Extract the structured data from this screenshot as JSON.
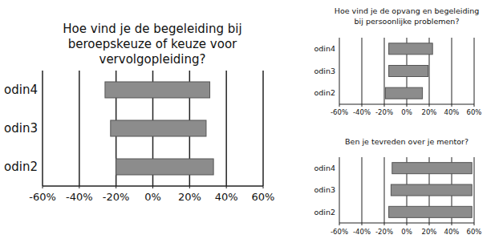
{
  "chart_data": [
    {
      "type": "bar",
      "orientation": "horizontal",
      "title": "Hoe vind je de begeleiding bij beroepskeuze of keuze voor vervolgopleiding?",
      "categories": [
        "odin4",
        "odin3",
        "odin2"
      ],
      "ranges": [
        [
          -26,
          31
        ],
        [
          -23,
          29
        ],
        [
          -20,
          33
        ]
      ],
      "color": "#8c8c8c",
      "xlim": [
        -60,
        60
      ],
      "xticks": [
        {
          "value": -60,
          "label": "-60%"
        },
        {
          "value": -40,
          "label": "-40%"
        },
        {
          "value": -20,
          "label": "-20%"
        },
        {
          "value": 0,
          "label": "0%"
        },
        {
          "value": 20,
          "label": "20%"
        },
        {
          "value": 40,
          "label": "40%"
        },
        {
          "value": 60,
          "label": "60%"
        }
      ],
      "grid": true
    },
    {
      "type": "bar",
      "orientation": "horizontal",
      "title": "Hoe vind je de opvang en begeleiding bij persoonlijke problemen?",
      "categories": [
        "odin4",
        "odin3",
        "odin2"
      ],
      "ranges": [
        [
          -16,
          23
        ],
        [
          -16,
          19
        ],
        [
          -19,
          14
        ]
      ],
      "color": "#8c8c8c",
      "xlim": [
        -60,
        60
      ],
      "xticks": [
        {
          "value": -60,
          "label": "-60%"
        },
        {
          "value": -40,
          "label": "-40%"
        },
        {
          "value": -20,
          "label": "-20%"
        },
        {
          "value": 0,
          "label": "0%"
        },
        {
          "value": 20,
          "label": "20%"
        },
        {
          "value": 40,
          "label": "40%"
        },
        {
          "value": 60,
          "label": "60%"
        }
      ],
      "grid": true
    },
    {
      "type": "bar",
      "orientation": "horizontal",
      "title": "Ben je tevreden over je mentor?",
      "categories": [
        "odin4",
        "odin3",
        "odin2"
      ],
      "ranges": [
        [
          -13,
          58
        ],
        [
          -14,
          58
        ],
        [
          -16,
          58
        ]
      ],
      "color": "#8c8c8c",
      "xlim": [
        -60,
        60
      ],
      "xticks": [
        {
          "value": -60,
          "label": "-60%"
        },
        {
          "value": -40,
          "label": "-40%"
        },
        {
          "value": -20,
          "label": "-20%"
        },
        {
          "value": 0,
          "label": "0%"
        },
        {
          "value": 20,
          "label": "20%"
        },
        {
          "value": 40,
          "label": "40%"
        },
        {
          "value": 60,
          "label": "60%"
        }
      ],
      "grid": true
    }
  ]
}
